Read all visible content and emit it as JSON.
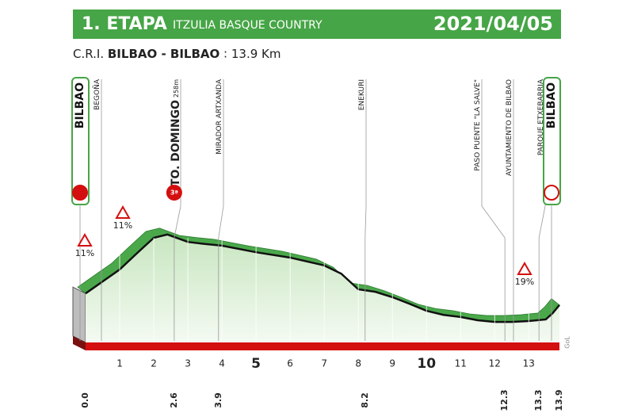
{
  "header": {
    "stage": "1. ETAPA",
    "race": "ITZULIA BASQUE COUNTRY",
    "date": "2021/04/05"
  },
  "subtitle": {
    "kind": "C.R.I.",
    "route": "BILBAO - BILBAO",
    "distance": "13.9 Km"
  },
  "chart_data": {
    "type": "area",
    "x": [
      0,
      0.5,
      1,
      1.5,
      2,
      2.4,
      3,
      3.5,
      4,
      5,
      6,
      7,
      7.5,
      8,
      8.5,
      9,
      9.5,
      10,
      10.5,
      11,
      11.5,
      12,
      12.5,
      13,
      13.5,
      13.7,
      13.9
    ],
    "values": [
      115,
      144,
      173,
      212,
      250,
      258,
      240,
      235,
      231,
      215,
      202,
      183,
      163,
      125,
      119,
      106,
      90,
      73,
      63,
      58,
      50,
      46,
      46,
      48,
      52,
      67,
      87
    ],
    "xlim": [
      0,
      13.9
    ],
    "xticks": [
      1,
      2,
      3,
      4,
      5,
      6,
      7,
      8,
      9,
      10,
      11,
      12,
      13
    ],
    "color": "#4aa84a",
    "start": "BILBAO",
    "finish": "BILBAO",
    "places": [
      {
        "name": "BEGOÑA"
      },
      {
        "name": "STO. DOMINGO",
        "elevation": "258m",
        "category": "3ª",
        "km": {
          "value": 2.6,
          "label": "2.6"
        }
      },
      {
        "name": "MIRADOR ARTXANDA",
        "km": {
          "value": 3.9,
          "label": "3.9"
        }
      },
      {
        "name": "ENEKURI",
        "km": {
          "value": 8.2,
          "label": "8.2"
        }
      },
      {
        "name": "PASO PUENTE \"LA SALVE\"",
        "km": {
          "value": 12.3,
          "label": "12.3"
        }
      },
      {
        "name": "AYUNTAMIENTO DE BILBAO"
      },
      {
        "name": "PARQUE ETXEBARRIA",
        "km": {
          "value": 13.3,
          "label": "13.3"
        }
      }
    ],
    "km_start": {
      "value": 0,
      "label": "0.0"
    },
    "km_end": {
      "value": 13.9,
      "label": "13.9"
    },
    "climbs": [
      "11%",
      "11%",
      "19%"
    ],
    "credit": "GoL"
  }
}
